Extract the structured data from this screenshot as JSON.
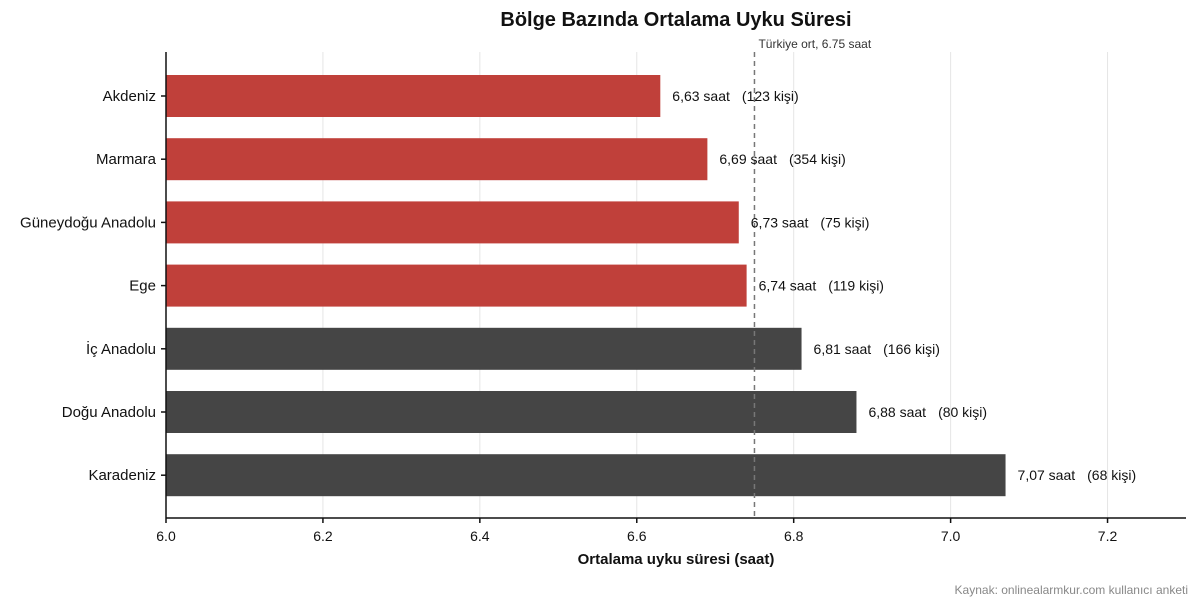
{
  "source": "Kaynak: onlinealarmkur.com kullanıcı anketi",
  "chart_data": {
    "type": "bar",
    "orientation": "horizontal",
    "title": "Bölge Bazında Ortalama Uyku Süresi",
    "xlabel": "Ortalama uyku süresi (saat)",
    "ylabel": "",
    "xlim": [
      6.0,
      7.3
    ],
    "xticks": [
      6.0,
      6.2,
      6.4,
      6.6,
      6.8,
      7.0,
      7.2
    ],
    "xtick_labels": [
      "6.0",
      "6.2",
      "6.4",
      "6.6",
      "6.8",
      "7.0",
      "7.2"
    ],
    "grid": "vertical",
    "categories": [
      "Akdeniz",
      "Marmara",
      "Güneydoğu Anadolu",
      "Ege",
      "İç Anadolu",
      "Doğu Anadolu",
      "Karadeniz"
    ],
    "values": [
      6.63,
      6.69,
      6.73,
      6.74,
      6.81,
      6.88,
      7.07
    ],
    "value_labels": [
      "6,63 saat",
      "6,69 saat",
      "6,73 saat",
      "6,74 saat",
      "6,81 saat",
      "6,88 saat",
      "7,07 saat"
    ],
    "count_labels": [
      "(123 kişi)",
      "(354 kişi)",
      "(75 kişi)",
      "(119 kişi)",
      "(166 kişi)",
      "(80 kişi)",
      "(68 kişi)"
    ],
    "reference_line": {
      "value": 6.75,
      "label": "Türkiye ort, 6.75 saat"
    },
    "colors": {
      "below_avg": "#c0403a",
      "above_avg": "#454545",
      "reference": "#777777"
    }
  }
}
